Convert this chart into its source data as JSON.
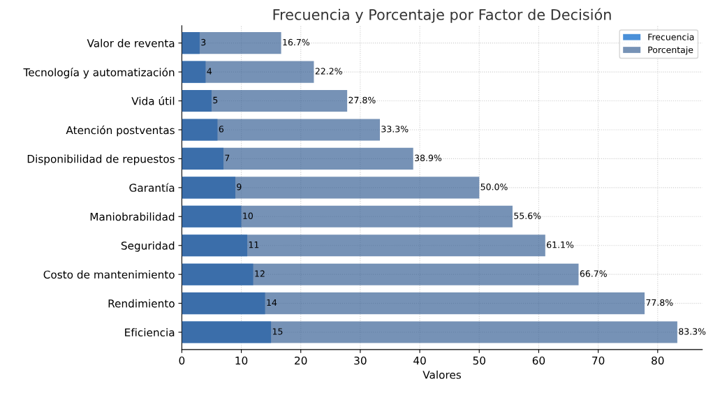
{
  "chart_data": {
    "type": "bar",
    "orientation": "horizontal",
    "title": "Frecuencia y Porcentaje por Factor de Decisión",
    "xlabel": "Valores",
    "categories": [
      "Valor de reventa",
      "Tecnología y automatización",
      "Vida útil",
      "Atención postventas",
      "Disponibilidad de repuestos",
      "Garantía",
      "Maniobrabilidad",
      "Seguridad",
      "Costo de mantenimiento",
      "Rendimiento",
      "Eficiencia"
    ],
    "series": [
      {
        "name": "Frecuencia",
        "color": "#4a90d9",
        "values": [
          3,
          4,
          5,
          6,
          7,
          9,
          10,
          11,
          12,
          14,
          15
        ],
        "value_labels": [
          "3",
          "4",
          "5",
          "6",
          "7",
          "9",
          "10",
          "11",
          "12",
          "14",
          "15"
        ]
      },
      {
        "name": "Porcentaje",
        "color": "#355f93",
        "values": [
          16.7,
          22.2,
          27.8,
          33.3,
          38.9,
          50.0,
          55.6,
          61.1,
          66.7,
          77.8,
          83.3
        ],
        "value_labels": [
          "16.7%",
          "22.2%",
          "27.8%",
          "33.3%",
          "38.9%",
          "50.0%",
          "55.6%",
          "61.1%",
          "66.7%",
          "77.8%",
          "83.3%"
        ]
      }
    ],
    "xlim": [
      0,
      87.5
    ],
    "xticks": [
      0,
      10,
      20,
      30,
      40,
      50,
      60,
      70,
      80
    ],
    "grid": true,
    "legend": "top right"
  }
}
